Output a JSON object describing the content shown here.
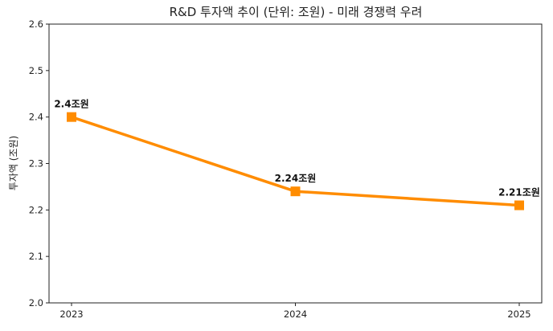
{
  "chart_data": {
    "type": "line",
    "title": "R&D 투자액 추이 (단위: 조원) - 미래 경쟁력 우려",
    "xlabel": "",
    "ylabel": "투자액 (조원)",
    "x": [
      "2023",
      "2024",
      "2025"
    ],
    "values": [
      2.4,
      2.24,
      2.21
    ],
    "data_labels": [
      "2.4조원",
      "2.24조원",
      "2.21조원"
    ],
    "ylim": [
      2.0,
      2.6
    ],
    "yticks": [
      "2.0",
      "2.1",
      "2.2",
      "2.3",
      "2.4",
      "2.5",
      "2.6"
    ],
    "grid": false,
    "legend": "none",
    "marker": "square",
    "line_color": "#FF8C00"
  }
}
